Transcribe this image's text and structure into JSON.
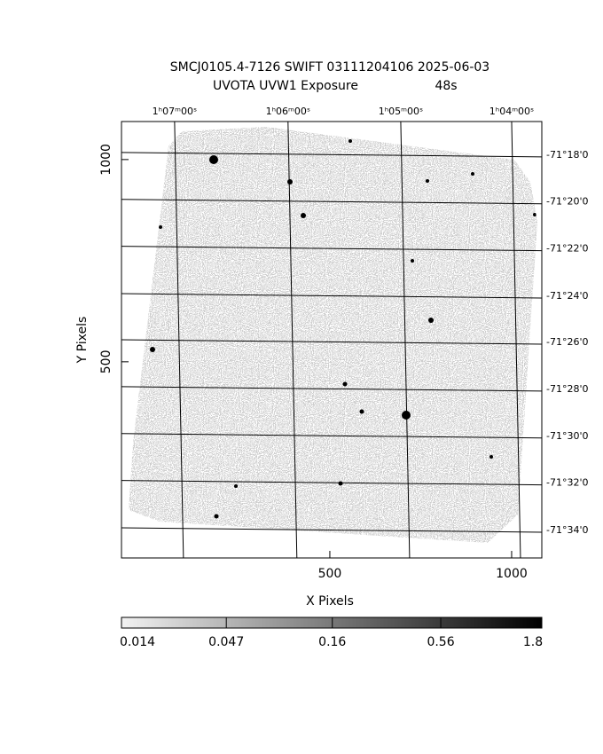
{
  "chart_data": {
    "type": "image",
    "title": "SMCJ0105.4-7126 SWIFT 03111204106 2025-06-03",
    "subtitle": "UVOTA UVW1 Exposure",
    "exposure": "48s",
    "xlabel": "X Pixels",
    "ylabel": "Y Pixels",
    "xlim": [
      -73,
      1083
    ],
    "ylim": [
      15,
      1094
    ],
    "xticks": [
      500,
      1000
    ],
    "yticks": [
      500,
      1000
    ],
    "ra_ticks": [
      {
        "value": 73,
        "label": "1ʰ07ᵐ00ˢ"
      },
      {
        "value": 385,
        "label": "1ʰ06ᵐ00ˢ"
      },
      {
        "value": 695,
        "label": "1ʰ05ᵐ00ˢ"
      },
      {
        "value": 1000,
        "label": "1ʰ04ᵐ00ˢ"
      }
    ],
    "dec_ticks": [
      {
        "value": 1011,
        "label": "-71°18'0"
      },
      {
        "value": 895,
        "label": "-71°20'0"
      },
      {
        "value": 779,
        "label": "-71°22'0"
      },
      {
        "value": 662,
        "label": "-71°24'0"
      },
      {
        "value": 548,
        "label": "-71°26'0"
      },
      {
        "value": 432,
        "label": "-71°28'0"
      },
      {
        "value": 316,
        "label": "-71°30'0"
      },
      {
        "value": 200,
        "label": "-71°32'0"
      },
      {
        "value": 83,
        "label": "-71°34'0"
      }
    ],
    "grid": true,
    "colorbar": {
      "scale": "log",
      "lim": [
        0.014,
        1.8
      ],
      "ticks": [
        0.014,
        0.047,
        0.16,
        0.56,
        1.8
      ]
    }
  }
}
